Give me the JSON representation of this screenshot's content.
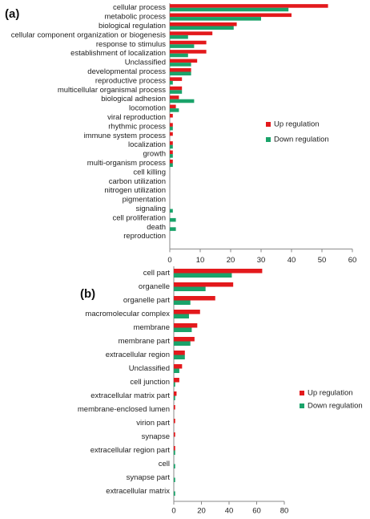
{
  "chart_data": [
    {
      "type": "bar",
      "orientation": "horizontal",
      "label": "(a)",
      "categories": [
        "cellular process",
        "metabolic process",
        "biological regulation",
        "cellular component organization or biogenesis",
        "response to stimulus",
        "establishment of localization",
        "Unclassified",
        "developmental process",
        "reproductive process",
        "multicellular organismal process",
        "biological adhesion",
        "locomotion",
        "viral reproduction",
        "rhythmic process",
        "immune system process",
        "localization",
        "growth",
        "multi-organism process",
        "cell killing",
        "carbon utilization",
        "nitrogen utilization",
        "pigmentation",
        "signaling",
        "cell proliferation",
        "death",
        "reproduction"
      ],
      "series": [
        {
          "name": "Up regulation",
          "color": "#e3191c",
          "values": [
            52,
            40,
            22,
            14,
            12,
            12,
            9,
            7,
            4,
            4,
            3,
            2,
            1,
            1,
            1,
            1,
            1,
            1,
            0,
            0,
            0,
            0,
            0,
            0,
            0,
            0
          ]
        },
        {
          "name": "Down regulation",
          "color": "#1aa36a",
          "values": [
            39,
            30,
            21,
            6,
            8,
            6,
            7,
            7,
            1,
            4,
            8,
            3,
            0,
            1,
            0,
            1,
            1,
            1,
            0,
            0,
            0,
            0,
            1,
            2,
            2,
            0
          ]
        }
      ],
      "xlim": [
        0,
        60
      ],
      "xticks": [
        0,
        10,
        20,
        30,
        40,
        50,
        60
      ],
      "legend": "right"
    },
    {
      "type": "bar",
      "orientation": "horizontal",
      "label": "(b)",
      "categories": [
        "cell part",
        "organelle",
        "organelle part",
        "macromolecular complex",
        "membrane",
        "membrane part",
        "extracellular region",
        "Unclassified",
        "cell junction",
        "extracellular matrix part",
        "membrane-enclosed lumen",
        "virion part",
        "synapse",
        "extracellular region part",
        "cell",
        "synapse part",
        "extracellular matrix"
      ],
      "series": [
        {
          "name": "Up regulation",
          "color": "#e3191c",
          "values": [
            64,
            43,
            30,
            19,
            17,
            15,
            8,
            6,
            4,
            2,
            1,
            1,
            1,
            1,
            0,
            0,
            0
          ]
        },
        {
          "name": "Down regulation",
          "color": "#1aa36a",
          "values": [
            42,
            23,
            12,
            11,
            13,
            12,
            8,
            4,
            1,
            1,
            0,
            0,
            0,
            1,
            1,
            1,
            1
          ]
        }
      ],
      "xlim": [
        0,
        80
      ],
      "xticks": [
        0,
        20,
        40,
        60,
        80
      ],
      "legend": "right"
    }
  ]
}
